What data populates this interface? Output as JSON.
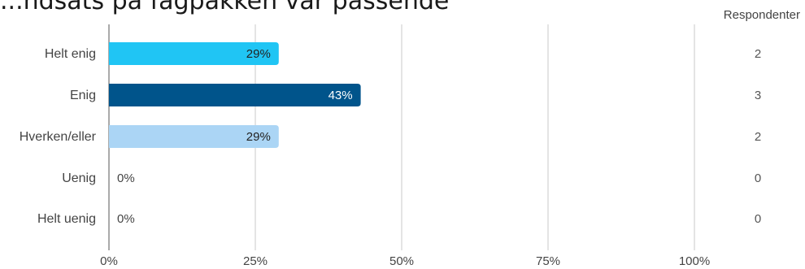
{
  "chart_data": {
    "type": "bar",
    "orientation": "horizontal",
    "title": "...ndsats på fagpakken var passende",
    "categories": [
      "Helt enig",
      "Enig",
      "Hverken/eller",
      "Uenig",
      "Helt uenig"
    ],
    "values": [
      29,
      43,
      29,
      0,
      0
    ],
    "value_labels": [
      "29%",
      "43%",
      "29%",
      "0%",
      "0%"
    ],
    "respondents_header": "Respondenter",
    "respondents": [
      "2",
      "3",
      "2",
      "0",
      "0"
    ],
    "xlim": [
      0,
      100
    ],
    "xticks": [
      0,
      25,
      50,
      75,
      100
    ],
    "xtick_labels": [
      "0%",
      "25%",
      "50%",
      "75%",
      "100%"
    ],
    "colors": [
      "#20c5f4",
      "#00548b",
      "#abd5f5",
      "#20c5f4",
      "#20c5f4"
    ],
    "label_colors": [
      "#222222",
      "#ffffff",
      "#222222",
      "#444444",
      "#444444"
    ],
    "grid": true
  }
}
